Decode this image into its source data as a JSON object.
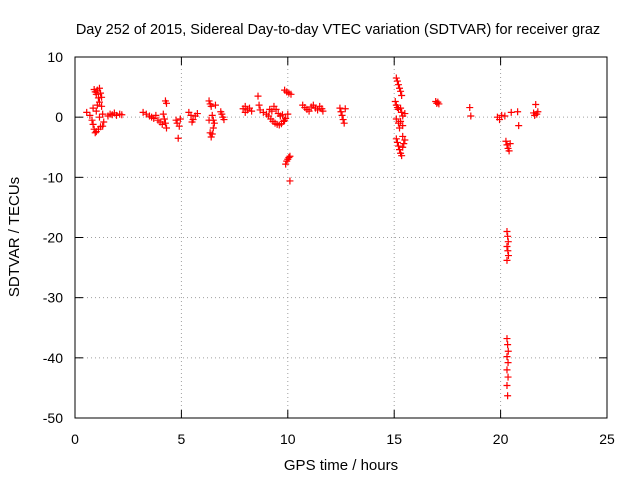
{
  "chart_data": {
    "type": "scatter",
    "title": "Day 252 of 2015, Sidereal Day-to-day VTEC variation (SDTVAR) for receiver graz",
    "xlabel": "GPS time / hours",
    "ylabel": "SDTVAR / TECUs",
    "xlim": [
      0,
      25
    ],
    "ylim": [
      -50,
      10
    ],
    "xticks": [
      0,
      5,
      10,
      15,
      20,
      25
    ],
    "yticks": [
      10,
      0,
      -10,
      -20,
      -30,
      -40,
      -50
    ],
    "grid": true,
    "marker": "+",
    "color": "#ff0000",
    "series": [
      {
        "name": "SDTVAR",
        "points": [
          [
            0.55,
            0.8
          ],
          [
            0.7,
            0.3
          ],
          [
            0.8,
            -0.5
          ],
          [
            0.85,
            1.5
          ],
          [
            0.9,
            4.6
          ],
          [
            0.95,
            4.2
          ],
          [
            1.0,
            3.8
          ],
          [
            1.05,
            4.5
          ],
          [
            1.1,
            3.2
          ],
          [
            1.15,
            2.5
          ],
          [
            1.2,
            4.0
          ],
          [
            1.25,
            1.8
          ],
          [
            1.3,
            0.5
          ],
          [
            1.35,
            -0.8
          ],
          [
            0.85,
            -1.2
          ],
          [
            0.9,
            -2.0
          ],
          [
            0.95,
            -2.6
          ],
          [
            1.0,
            -2.4
          ],
          [
            1.1,
            -2.0
          ],
          [
            1.2,
            -1.6
          ],
          [
            1.3,
            -1.5
          ],
          [
            1.15,
            0.0
          ],
          [
            1.0,
            1.0
          ],
          [
            1.05,
            2.0
          ],
          [
            1.25,
            3.3
          ],
          [
            1.15,
            4.8
          ],
          [
            1.55,
            0.2
          ],
          [
            1.65,
            0.5
          ],
          [
            1.75,
            0.4
          ],
          [
            1.85,
            0.7
          ],
          [
            1.95,
            0.3
          ],
          [
            2.1,
            0.5
          ],
          [
            2.2,
            0.4
          ],
          [
            3.2,
            0.8
          ],
          [
            3.35,
            0.5
          ],
          [
            3.5,
            0.2
          ],
          [
            3.6,
            0.0
          ],
          [
            3.7,
            -0.2
          ],
          [
            3.8,
            0.3
          ],
          [
            3.9,
            -0.5
          ],
          [
            4.0,
            -0.8
          ],
          [
            4.1,
            -1.2
          ],
          [
            4.15,
            0.5
          ],
          [
            4.2,
            -0.3
          ],
          [
            4.25,
            2.7
          ],
          [
            4.3,
            2.3
          ],
          [
            4.3,
            -1.8
          ],
          [
            4.25,
            -1.0
          ],
          [
            4.75,
            -0.5
          ],
          [
            4.8,
            -1.0
          ],
          [
            4.85,
            -3.5
          ],
          [
            4.9,
            -1.5
          ],
          [
            4.95,
            -0.3
          ],
          [
            5.35,
            0.8
          ],
          [
            5.45,
            0.3
          ],
          [
            5.55,
            -0.4
          ],
          [
            5.65,
            0.2
          ],
          [
            5.75,
            0.6
          ],
          [
            5.5,
            -0.8
          ],
          [
            6.3,
            2.7
          ],
          [
            6.35,
            2.2
          ],
          [
            6.4,
            1.8
          ],
          [
            6.45,
            0.3
          ],
          [
            6.5,
            -0.5
          ],
          [
            6.55,
            -1.0
          ],
          [
            6.35,
            -2.6
          ],
          [
            6.4,
            -3.3
          ],
          [
            6.45,
            -2.8
          ],
          [
            6.5,
            -1.8
          ],
          [
            6.3,
            -0.5
          ],
          [
            6.6,
            2.0
          ],
          [
            6.9,
            0.5
          ],
          [
            6.95,
            0.0
          ],
          [
            7.0,
            -0.4
          ],
          [
            6.85,
            0.9
          ],
          [
            7.9,
            1.4
          ],
          [
            8.0,
            1.8
          ],
          [
            8.1,
            1.2
          ],
          [
            8.2,
            1.5
          ],
          [
            8.3,
            1.0
          ],
          [
            8.0,
            0.8
          ],
          [
            8.6,
            3.5
          ],
          [
            8.65,
            2.0
          ],
          [
            8.7,
            1.2
          ],
          [
            8.85,
            0.8
          ],
          [
            9.0,
            0.5
          ],
          [
            9.1,
            0.2
          ],
          [
            9.2,
            -0.3
          ],
          [
            9.3,
            -0.7
          ],
          [
            9.4,
            -1.0
          ],
          [
            9.5,
            -1.2
          ],
          [
            9.6,
            -1.3
          ],
          [
            9.7,
            -1.1
          ],
          [
            9.8,
            -0.7
          ],
          [
            9.9,
            -0.2
          ],
          [
            10.0,
            0.5
          ],
          [
            9.25,
            1.0
          ],
          [
            9.35,
            1.8
          ],
          [
            9.45,
            1.3
          ],
          [
            9.55,
            0.6
          ],
          [
            9.65,
            0.2
          ],
          [
            9.75,
            0.4
          ],
          [
            9.85,
            -0.5
          ],
          [
            9.15,
            1.3
          ],
          [
            9.85,
            4.5
          ],
          [
            9.95,
            4.2
          ],
          [
            10.05,
            4.0
          ],
          [
            10.15,
            3.8
          ],
          [
            9.9,
            -7.8
          ],
          [
            9.95,
            -7.3
          ],
          [
            10.0,
            -7.0
          ],
          [
            10.05,
            -6.7
          ],
          [
            10.1,
            -6.5
          ],
          [
            10.1,
            -10.6
          ],
          [
            10.7,
            2.0
          ],
          [
            10.8,
            1.6
          ],
          [
            10.9,
            1.3
          ],
          [
            11.0,
            1.0
          ],
          [
            11.1,
            1.7
          ],
          [
            11.2,
            2.0
          ],
          [
            11.3,
            1.5
          ],
          [
            11.4,
            1.2
          ],
          [
            11.5,
            1.8
          ],
          [
            11.6,
            1.4
          ],
          [
            11.65,
            1.0
          ],
          [
            12.45,
            1.5
          ],
          [
            12.5,
            0.9
          ],
          [
            12.55,
            0.3
          ],
          [
            12.6,
            -0.4
          ],
          [
            12.65,
            -1.0
          ],
          [
            12.7,
            1.4
          ],
          [
            15.1,
            6.5
          ],
          [
            15.15,
            6.0
          ],
          [
            15.2,
            5.4
          ],
          [
            15.25,
            4.8
          ],
          [
            15.3,
            4.3
          ],
          [
            15.35,
            3.6
          ],
          [
            15.05,
            2.6
          ],
          [
            15.1,
            2.0
          ],
          [
            15.15,
            1.6
          ],
          [
            15.2,
            1.3
          ],
          [
            15.3,
            1.5
          ],
          [
            15.35,
            0.8
          ],
          [
            15.4,
            0.2
          ],
          [
            15.1,
            -0.3
          ],
          [
            15.2,
            -1.0
          ],
          [
            15.25,
            -1.8
          ],
          [
            15.3,
            -0.7
          ],
          [
            15.4,
            -1.4
          ],
          [
            15.1,
            -3.6
          ],
          [
            15.15,
            -4.2
          ],
          [
            15.2,
            -4.8
          ],
          [
            15.25,
            -5.4
          ],
          [
            15.3,
            -6.0
          ],
          [
            15.35,
            -6.4
          ],
          [
            15.4,
            -5.0
          ],
          [
            15.45,
            -4.4
          ],
          [
            15.5,
            -3.8
          ],
          [
            15.4,
            -3.2
          ],
          [
            15.5,
            0.6
          ],
          [
            16.95,
            2.6
          ],
          [
            17.0,
            2.3
          ],
          [
            17.05,
            2.5
          ],
          [
            17.1,
            2.2
          ],
          [
            18.55,
            1.6
          ],
          [
            18.6,
            0.2
          ],
          [
            19.85,
            0.0
          ],
          [
            19.95,
            -0.4
          ],
          [
            20.05,
            0.3
          ],
          [
            20.2,
            0.2
          ],
          [
            20.25,
            -4.0
          ],
          [
            20.3,
            -4.6
          ],
          [
            20.35,
            -5.2
          ],
          [
            20.4,
            -5.6
          ],
          [
            20.45,
            -4.4
          ],
          [
            20.3,
            -19.0
          ],
          [
            20.33,
            -19.8
          ],
          [
            20.36,
            -20.7
          ],
          [
            20.3,
            -21.5
          ],
          [
            20.34,
            -22.2
          ],
          [
            20.37,
            -23.0
          ],
          [
            20.3,
            -23.8
          ],
          [
            20.3,
            -36.8
          ],
          [
            20.33,
            -37.8
          ],
          [
            20.36,
            -38.9
          ],
          [
            20.3,
            -39.8
          ],
          [
            20.35,
            -40.8
          ],
          [
            20.3,
            -42.0
          ],
          [
            20.35,
            -43.2
          ],
          [
            20.3,
            -44.6
          ],
          [
            20.33,
            -46.3
          ],
          [
            20.5,
            0.8
          ],
          [
            20.8,
            0.9
          ],
          [
            20.85,
            -1.4
          ],
          [
            21.55,
            0.7
          ],
          [
            21.6,
            0.3
          ],
          [
            21.65,
            2.1
          ],
          [
            21.7,
            0.5
          ],
          [
            21.75,
            0.9
          ]
        ]
      }
    ]
  }
}
